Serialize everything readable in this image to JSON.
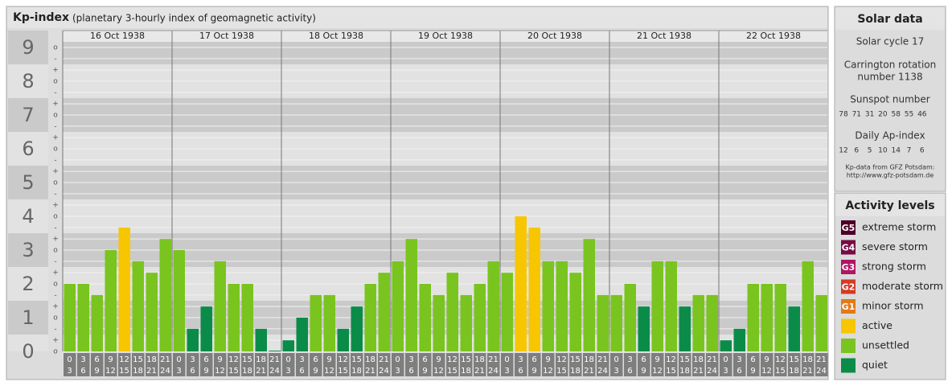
{
  "chart_data": {
    "type": "bar",
    "title": "Kp-index",
    "subtitle": "(planetary 3-hourly index of geomagnetic activity)",
    "ylim": [
      0,
      9.5
    ],
    "yticks": [
      0,
      1,
      2,
      3,
      4,
      5,
      6,
      7,
      8,
      9
    ],
    "yminor": [
      {
        "value": 0,
        "label": "o"
      },
      {
        "value": 0.33,
        "label": "+"
      },
      {
        "value": 0.67,
        "label": "-"
      },
      {
        "value": 1,
        "label": "o"
      },
      {
        "value": 1.33,
        "label": "+"
      },
      {
        "value": 1.67,
        "label": "-"
      },
      {
        "value": 2,
        "label": "o"
      },
      {
        "value": 2.33,
        "label": "+"
      },
      {
        "value": 2.67,
        "label": "-"
      },
      {
        "value": 3,
        "label": "o"
      },
      {
        "value": 3.33,
        "label": "+"
      },
      {
        "value": 3.67,
        "label": "-"
      },
      {
        "value": 4,
        "label": "o"
      },
      {
        "value": 4.33,
        "label": "+"
      },
      {
        "value": 4.67,
        "label": "-"
      },
      {
        "value": 5,
        "label": "o"
      },
      {
        "value": 5.33,
        "label": "+"
      },
      {
        "value": 5.67,
        "label": "-"
      },
      {
        "value": 6,
        "label": "o"
      },
      {
        "value": 6.33,
        "label": "+"
      },
      {
        "value": 6.67,
        "label": "-"
      },
      {
        "value": 7,
        "label": "o"
      },
      {
        "value": 7.33,
        "label": "+"
      },
      {
        "value": 7.67,
        "label": "-"
      },
      {
        "value": 8,
        "label": "o"
      },
      {
        "value": 8.33,
        "label": "+"
      },
      {
        "value": 8.67,
        "label": "-"
      },
      {
        "value": 9,
        "label": "o"
      }
    ],
    "hour_starts": [
      "0",
      "3",
      "6",
      "9",
      "12",
      "15",
      "18",
      "21"
    ],
    "hour_ends": [
      "3",
      "6",
      "9",
      "12",
      "15",
      "18",
      "21",
      "24"
    ],
    "days": [
      {
        "date": "16 Oct 1938",
        "values": [
          2,
          2,
          1.67,
          3,
          3.67,
          2.67,
          2.33,
          3.33
        ],
        "colors": [
          "#7ac41f",
          "#7ac41f",
          "#7ac41f",
          "#7ac41f",
          "#f7c600",
          "#7ac41f",
          "#7ac41f",
          "#7ac41f"
        ]
      },
      {
        "date": "17 Oct 1938",
        "values": [
          3,
          0.67,
          1.33,
          2.67,
          2,
          2,
          0.67,
          0
        ],
        "colors": [
          "#7ac41f",
          "#0a8c48",
          "#0a8c48",
          "#7ac41f",
          "#7ac41f",
          "#7ac41f",
          "#0a8c48",
          "#0a8c48"
        ]
      },
      {
        "date": "18 Oct 1938",
        "values": [
          0.33,
          1,
          1.67,
          1.67,
          0.67,
          1.33,
          2,
          2.33
        ],
        "colors": [
          "#0a8c48",
          "#0a8c48",
          "#7ac41f",
          "#7ac41f",
          "#0a8c48",
          "#0a8c48",
          "#7ac41f",
          "#7ac41f"
        ]
      },
      {
        "date": "19 Oct 1938",
        "values": [
          2.67,
          3.33,
          2,
          1.67,
          2.33,
          1.67,
          2,
          2.67
        ],
        "colors": [
          "#7ac41f",
          "#7ac41f",
          "#7ac41f",
          "#7ac41f",
          "#7ac41f",
          "#7ac41f",
          "#7ac41f",
          "#7ac41f"
        ]
      },
      {
        "date": "20 Oct 1938",
        "values": [
          2.33,
          4,
          3.67,
          2.67,
          2.67,
          2.33,
          3.33,
          1.67
        ],
        "colors": [
          "#7ac41f",
          "#f7c600",
          "#f7c600",
          "#7ac41f",
          "#7ac41f",
          "#7ac41f",
          "#7ac41f",
          "#7ac41f"
        ]
      },
      {
        "date": "21 Oct 1938",
        "values": [
          1.67,
          2,
          1.33,
          2.67,
          2.67,
          1.33,
          1.67,
          1.67
        ],
        "colors": [
          "#7ac41f",
          "#7ac41f",
          "#0a8c48",
          "#7ac41f",
          "#7ac41f",
          "#0a8c48",
          "#7ac41f",
          "#7ac41f"
        ]
      },
      {
        "date": "22 Oct 1938",
        "values": [
          0.33,
          0.67,
          2,
          2,
          2,
          1.33,
          2.67,
          1.67
        ],
        "colors": [
          "#0a8c48",
          "#0a8c48",
          "#7ac41f",
          "#7ac41f",
          "#7ac41f",
          "#0a8c48",
          "#7ac41f",
          "#7ac41f"
        ]
      }
    ],
    "solar": {
      "title": "Solar data",
      "cycle": "Solar cycle 17",
      "carrington": [
        "Carrington rotation",
        "number 1138"
      ],
      "sunspot_label": "Sunspot number",
      "sunspots": [
        78,
        71,
        31,
        20,
        58,
        55,
        46
      ],
      "ap_label": "Daily Ap-index",
      "ap": [
        12,
        6,
        5,
        10,
        14,
        7,
        6
      ],
      "credit": [
        "Kp-data from GFZ Potsdam:",
        "http://www.gfz-potsdam.de"
      ]
    },
    "legend": {
      "title": "Activity levels",
      "levels": [
        {
          "code": "G5",
          "name": "extreme storm",
          "color": "#4c0025"
        },
        {
          "code": "G4",
          "name": "severe storm",
          "color": "#780a44"
        },
        {
          "code": "G3",
          "name": "strong storm",
          "color": "#b01464"
        },
        {
          "code": "G2",
          "name": "moderate storm",
          "color": "#d43a26"
        },
        {
          "code": "G1",
          "name": "minor storm",
          "color": "#e27a16"
        },
        {
          "name": "active",
          "color": "#f7c600"
        },
        {
          "name": "unsettled",
          "color": "#7ac41f"
        },
        {
          "name": "quiet",
          "color": "#0a8c48"
        }
      ]
    }
  }
}
